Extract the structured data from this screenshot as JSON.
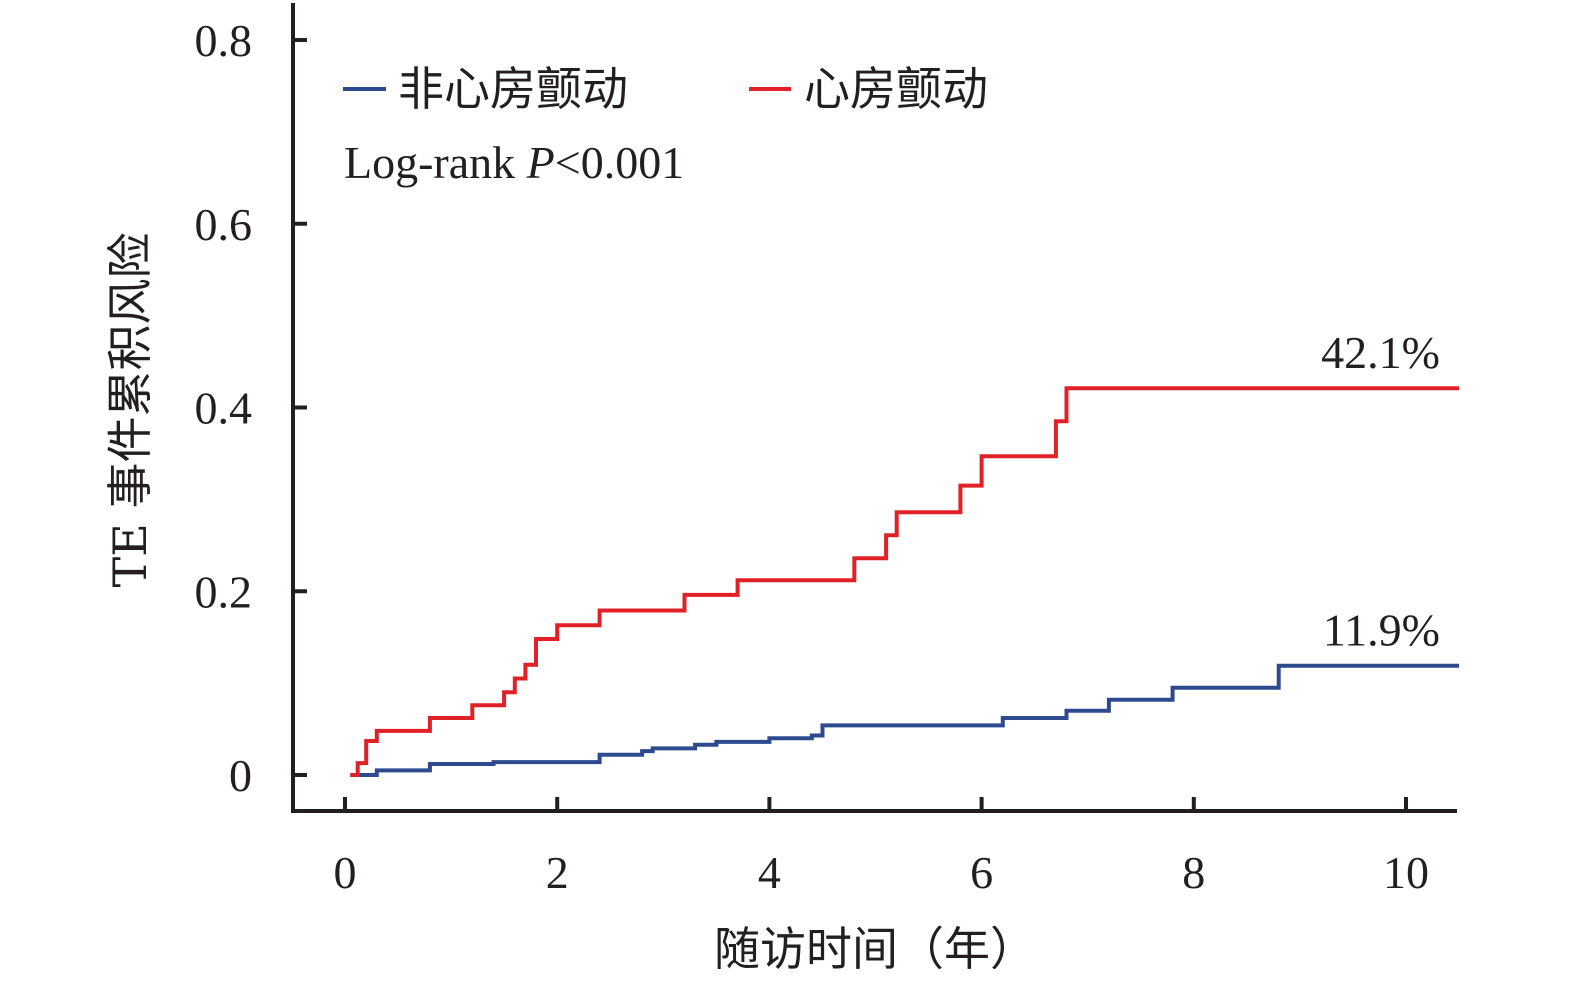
{
  "chart_data": {
    "type": "line",
    "title": "",
    "xlabel": "随访时间（年）",
    "ylabel": "TE 事件累积风险",
    "xlim": [
      -0.5,
      10.5
    ],
    "ylim": [
      -0.07,
      0.85
    ],
    "x_ticks": [
      0,
      2,
      4,
      6,
      8,
      10
    ],
    "x_tick_labels": [
      "0",
      "2",
      "4",
      "6",
      "8",
      "10"
    ],
    "y_ticks": [
      0,
      0.2,
      0.4,
      0.6,
      0.8
    ],
    "y_tick_labels": [
      "0",
      "0.2",
      "0.4",
      "0.6",
      "0.8"
    ],
    "grid": false,
    "legend_position": "top-left",
    "step": true,
    "annotation": {
      "prefix": "Log-rank ",
      "italic": "P",
      "suffix": "<0.001"
    },
    "series": [
      {
        "name": "非心房颤动",
        "color": "#2e4a8f",
        "end_label": "11.9%",
        "points": [
          [
            0.05,
            0.0
          ],
          [
            0.3,
            0.005
          ],
          [
            0.8,
            0.012
          ],
          [
            1.4,
            0.014
          ],
          [
            2.4,
            0.022
          ],
          [
            2.8,
            0.026
          ],
          [
            2.9,
            0.029
          ],
          [
            3.3,
            0.033
          ],
          [
            3.5,
            0.036
          ],
          [
            4.0,
            0.04
          ],
          [
            4.4,
            0.043
          ],
          [
            4.5,
            0.054
          ],
          [
            6.2,
            0.062
          ],
          [
            6.8,
            0.07
          ],
          [
            7.2,
            0.082
          ],
          [
            7.8,
            0.095
          ],
          [
            8.8,
            0.119
          ],
          [
            10.5,
            0.119
          ]
        ]
      },
      {
        "name": "心房颤动",
        "color": "#e02127",
        "end_label": "42.1%",
        "points": [
          [
            0.05,
            0.0
          ],
          [
            0.12,
            0.013
          ],
          [
            0.2,
            0.037
          ],
          [
            0.3,
            0.048
          ],
          [
            0.8,
            0.062
          ],
          [
            1.2,
            0.076
          ],
          [
            1.5,
            0.09
          ],
          [
            1.6,
            0.105
          ],
          [
            1.7,
            0.12
          ],
          [
            1.8,
            0.148
          ],
          [
            2.0,
            0.163
          ],
          [
            2.4,
            0.179
          ],
          [
            3.2,
            0.196
          ],
          [
            3.7,
            0.212
          ],
          [
            4.8,
            0.236
          ],
          [
            5.1,
            0.261
          ],
          [
            5.2,
            0.286
          ],
          [
            5.8,
            0.315
          ],
          [
            6.0,
            0.347
          ],
          [
            6.7,
            0.385
          ],
          [
            6.8,
            0.421
          ],
          [
            10.5,
            0.421
          ]
        ]
      }
    ]
  }
}
